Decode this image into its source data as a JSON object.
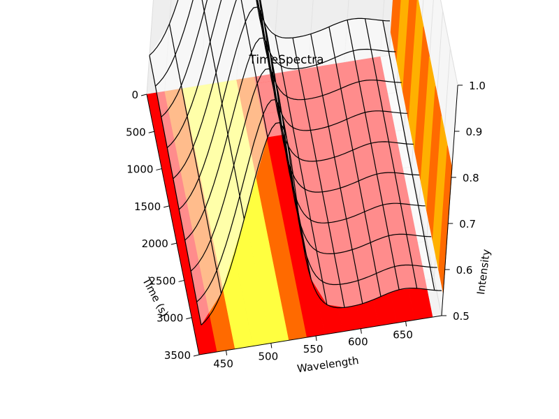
{
  "chart_data": {
    "type": "surface3d",
    "title": "TimeSpectra",
    "xlabel": "Wavelength",
    "ylabel": "Time (s)",
    "zlabel": "Intensity",
    "x_ticks": [
      450,
      500,
      550,
      600,
      650
    ],
    "y_ticks": [
      0,
      500,
      1000,
      1500,
      2000,
      2500,
      3000,
      3500
    ],
    "z_ticks": [
      "0.5",
      "0.6",
      "0.7",
      "0.8",
      "0.9",
      "1.0"
    ],
    "xlim": [
      420,
      690
    ],
    "ylim": [
      0,
      3500
    ],
    "zlim": [
      0.5,
      1.0
    ],
    "wavelengths": [
      420,
      440,
      460,
      480,
      500,
      520,
      540,
      560,
      580,
      600,
      620,
      640,
      660,
      680
    ],
    "times": [
      0,
      400,
      800,
      1200,
      1600,
      2000,
      2400,
      2800,
      3200,
      3500
    ],
    "peak_wavelength": 490,
    "peak_intensity": 1.0,
    "min_intensity": 0.55,
    "colormap": [
      "#ff0000",
      "#ff6a00",
      "#ffd000",
      "#ffff40"
    ],
    "mesh_color": "#000000"
  }
}
